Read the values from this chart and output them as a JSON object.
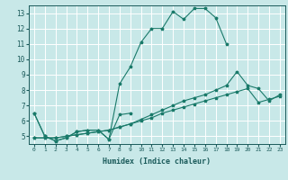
{
  "xlabel": "Humidex (Indice chaleur)",
  "bg_color": "#c8e8e8",
  "grid_color": "#ffffff",
  "line_color": "#1a7a6a",
  "xlim": [
    -0.5,
    23.5
  ],
  "ylim": [
    4.5,
    13.5
  ],
  "xticks": [
    0,
    1,
    2,
    3,
    4,
    5,
    6,
    7,
    8,
    9,
    10,
    11,
    12,
    13,
    14,
    15,
    16,
    17,
    18,
    19,
    20,
    21,
    22,
    23
  ],
  "yticks": [
    5,
    6,
    7,
    8,
    9,
    10,
    11,
    12,
    13
  ],
  "series": [
    {
      "x": [
        0,
        1,
        2,
        3,
        4,
        5,
        6,
        7,
        8,
        9,
        10,
        11,
        12,
        13,
        14,
        15,
        16,
        17,
        18
      ],
      "y": [
        6.5,
        5.0,
        4.7,
        4.9,
        5.3,
        5.4,
        5.4,
        4.8,
        8.4,
        9.5,
        11.1,
        12.0,
        12.0,
        13.1,
        12.6,
        13.3,
        13.3,
        12.7,
        11.0
      ]
    },
    {
      "x": [
        0,
        1,
        2,
        3,
        4,
        5,
        6,
        7,
        8,
        9
      ],
      "y": [
        6.5,
        5.0,
        4.7,
        4.9,
        5.3,
        5.4,
        5.4,
        4.8,
        6.4,
        6.5
      ]
    },
    {
      "x": [
        0,
        1,
        2,
        3,
        4,
        5,
        6,
        7,
        8,
        9,
        10,
        11,
        12,
        13,
        14,
        15,
        16,
        17,
        18,
        19,
        20,
        21,
        22,
        23
      ],
      "y": [
        4.9,
        4.9,
        4.9,
        5.0,
        5.1,
        5.2,
        5.3,
        5.4,
        5.6,
        5.8,
        6.0,
        6.2,
        6.5,
        6.7,
        6.9,
        7.1,
        7.3,
        7.5,
        7.7,
        7.9,
        8.1,
        7.2,
        7.4,
        7.6
      ]
    },
    {
      "x": [
        0,
        1,
        2,
        3,
        4,
        5,
        6,
        7,
        8,
        9,
        10,
        11,
        12,
        13,
        14,
        15,
        16,
        17,
        18,
        19,
        20,
        21,
        22,
        23
      ],
      "y": [
        4.9,
        4.9,
        4.9,
        5.0,
        5.1,
        5.2,
        5.3,
        5.4,
        5.6,
        5.8,
        6.1,
        6.4,
        6.7,
        7.0,
        7.3,
        7.5,
        7.7,
        8.0,
        8.3,
        9.2,
        8.3,
        8.1,
        7.3,
        7.7
      ]
    }
  ]
}
